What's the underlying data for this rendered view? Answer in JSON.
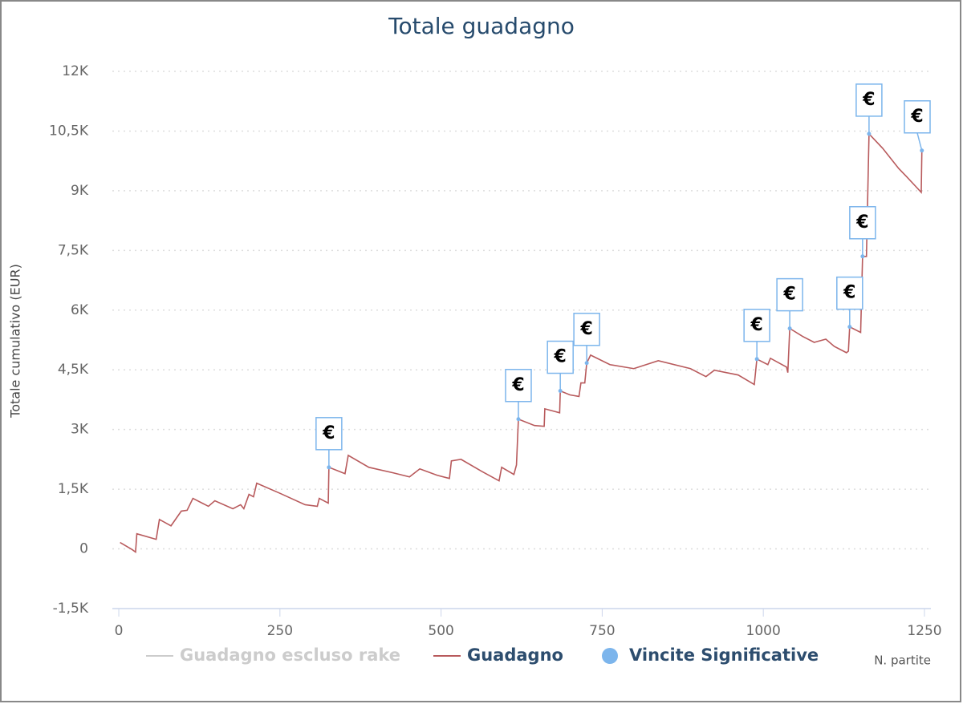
{
  "chart_data": {
    "type": "line",
    "title": "Totale guadagno",
    "xlabel": "N. partite",
    "ylabel": "Totale cumulativo (EUR)",
    "xlim": [
      -10,
      1260
    ],
    "xticks": [
      0,
      250,
      500,
      750,
      1000,
      1250
    ],
    "ylim": [
      -1500,
      12000
    ],
    "yticks": [
      {
        "value": -1500,
        "label": "-1,5K"
      },
      0,
      {
        "value": 1500,
        "label": "1,5K"
      },
      {
        "value": 3000,
        "label": "3K"
      },
      {
        "value": 4500,
        "label": "4,5K"
      },
      {
        "value": 6000,
        "label": "6K"
      },
      {
        "value": 7500,
        "label": "7,5K"
      },
      {
        "value": 9000,
        "label": "9K"
      },
      {
        "value": 10500,
        "label": "10,5K"
      },
      {
        "value": 12000,
        "label": "12K"
      }
    ],
    "grid": true,
    "series": [
      {
        "name": "Guadagno escluso rake",
        "color": "#cccccc",
        "visible": false
      },
      {
        "name": "Guadagno",
        "color": "#b85a5c",
        "x": [
          2,
          21,
          26,
          28,
          58,
          63,
          81,
          97,
          106,
          115,
          139,
          149,
          177,
          189,
          194,
          202,
          209,
          214,
          251,
          289,
          308,
          311,
          325,
          326,
          351,
          356,
          388,
          426,
          451,
          467,
          494,
          513,
          516,
          531,
          563,
          590,
          594,
          613,
          617,
          620,
          645,
          660,
          661,
          675,
          684,
          685,
          700,
          714,
          717,
          723,
          726,
          732,
          762,
          799,
          837,
          887,
          911,
          924,
          961,
          986,
          990,
          1007,
          1011,
          1036,
          1038,
          1041,
          1061,
          1079,
          1097,
          1110,
          1129,
          1132,
          1134,
          1151,
          1154,
          1160,
          1164,
          1185,
          1210,
          1222,
          1245,
          1246
        ],
        "values": [
          160,
          -20,
          -80,
          380,
          240,
          740,
          580,
          950,
          970,
          1270,
          1070,
          1210,
          1010,
          1110,
          1010,
          1370,
          1310,
          1650,
          1390,
          1110,
          1070,
          1270,
          1150,
          2050,
          1890,
          2350,
          2050,
          1910,
          1810,
          2010,
          1850,
          1770,
          2210,
          2250,
          1950,
          1710,
          2050,
          1870,
          2110,
          3260,
          3100,
          3080,
          3520,
          3460,
          3420,
          3970,
          3870,
          3830,
          4170,
          4170,
          4670,
          4870,
          4630,
          4530,
          4730,
          4530,
          4330,
          4490,
          4370,
          4130,
          4770,
          4630,
          4790,
          4570,
          4430,
          5540,
          5340,
          5190,
          5270,
          5090,
          4930,
          4970,
          5580,
          5440,
          7350,
          7350,
          10430,
          10070,
          9560,
          9360,
          8960,
          10010
        ]
      },
      {
        "name": "Vincite Significative",
        "color": "#7cb5ec",
        "x": [
          326,
          620,
          685,
          726,
          990,
          1041,
          1134,
          1154,
          1164,
          1246
        ],
        "values": [
          2050,
          3260,
          3970,
          4670,
          4770,
          5540,
          5580,
          7350,
          10430,
          10010
        ],
        "labels": [
          "€",
          "€",
          "€",
          "€",
          "€",
          "€",
          "€",
          "€",
          "€",
          "€"
        ]
      }
    ]
  }
}
